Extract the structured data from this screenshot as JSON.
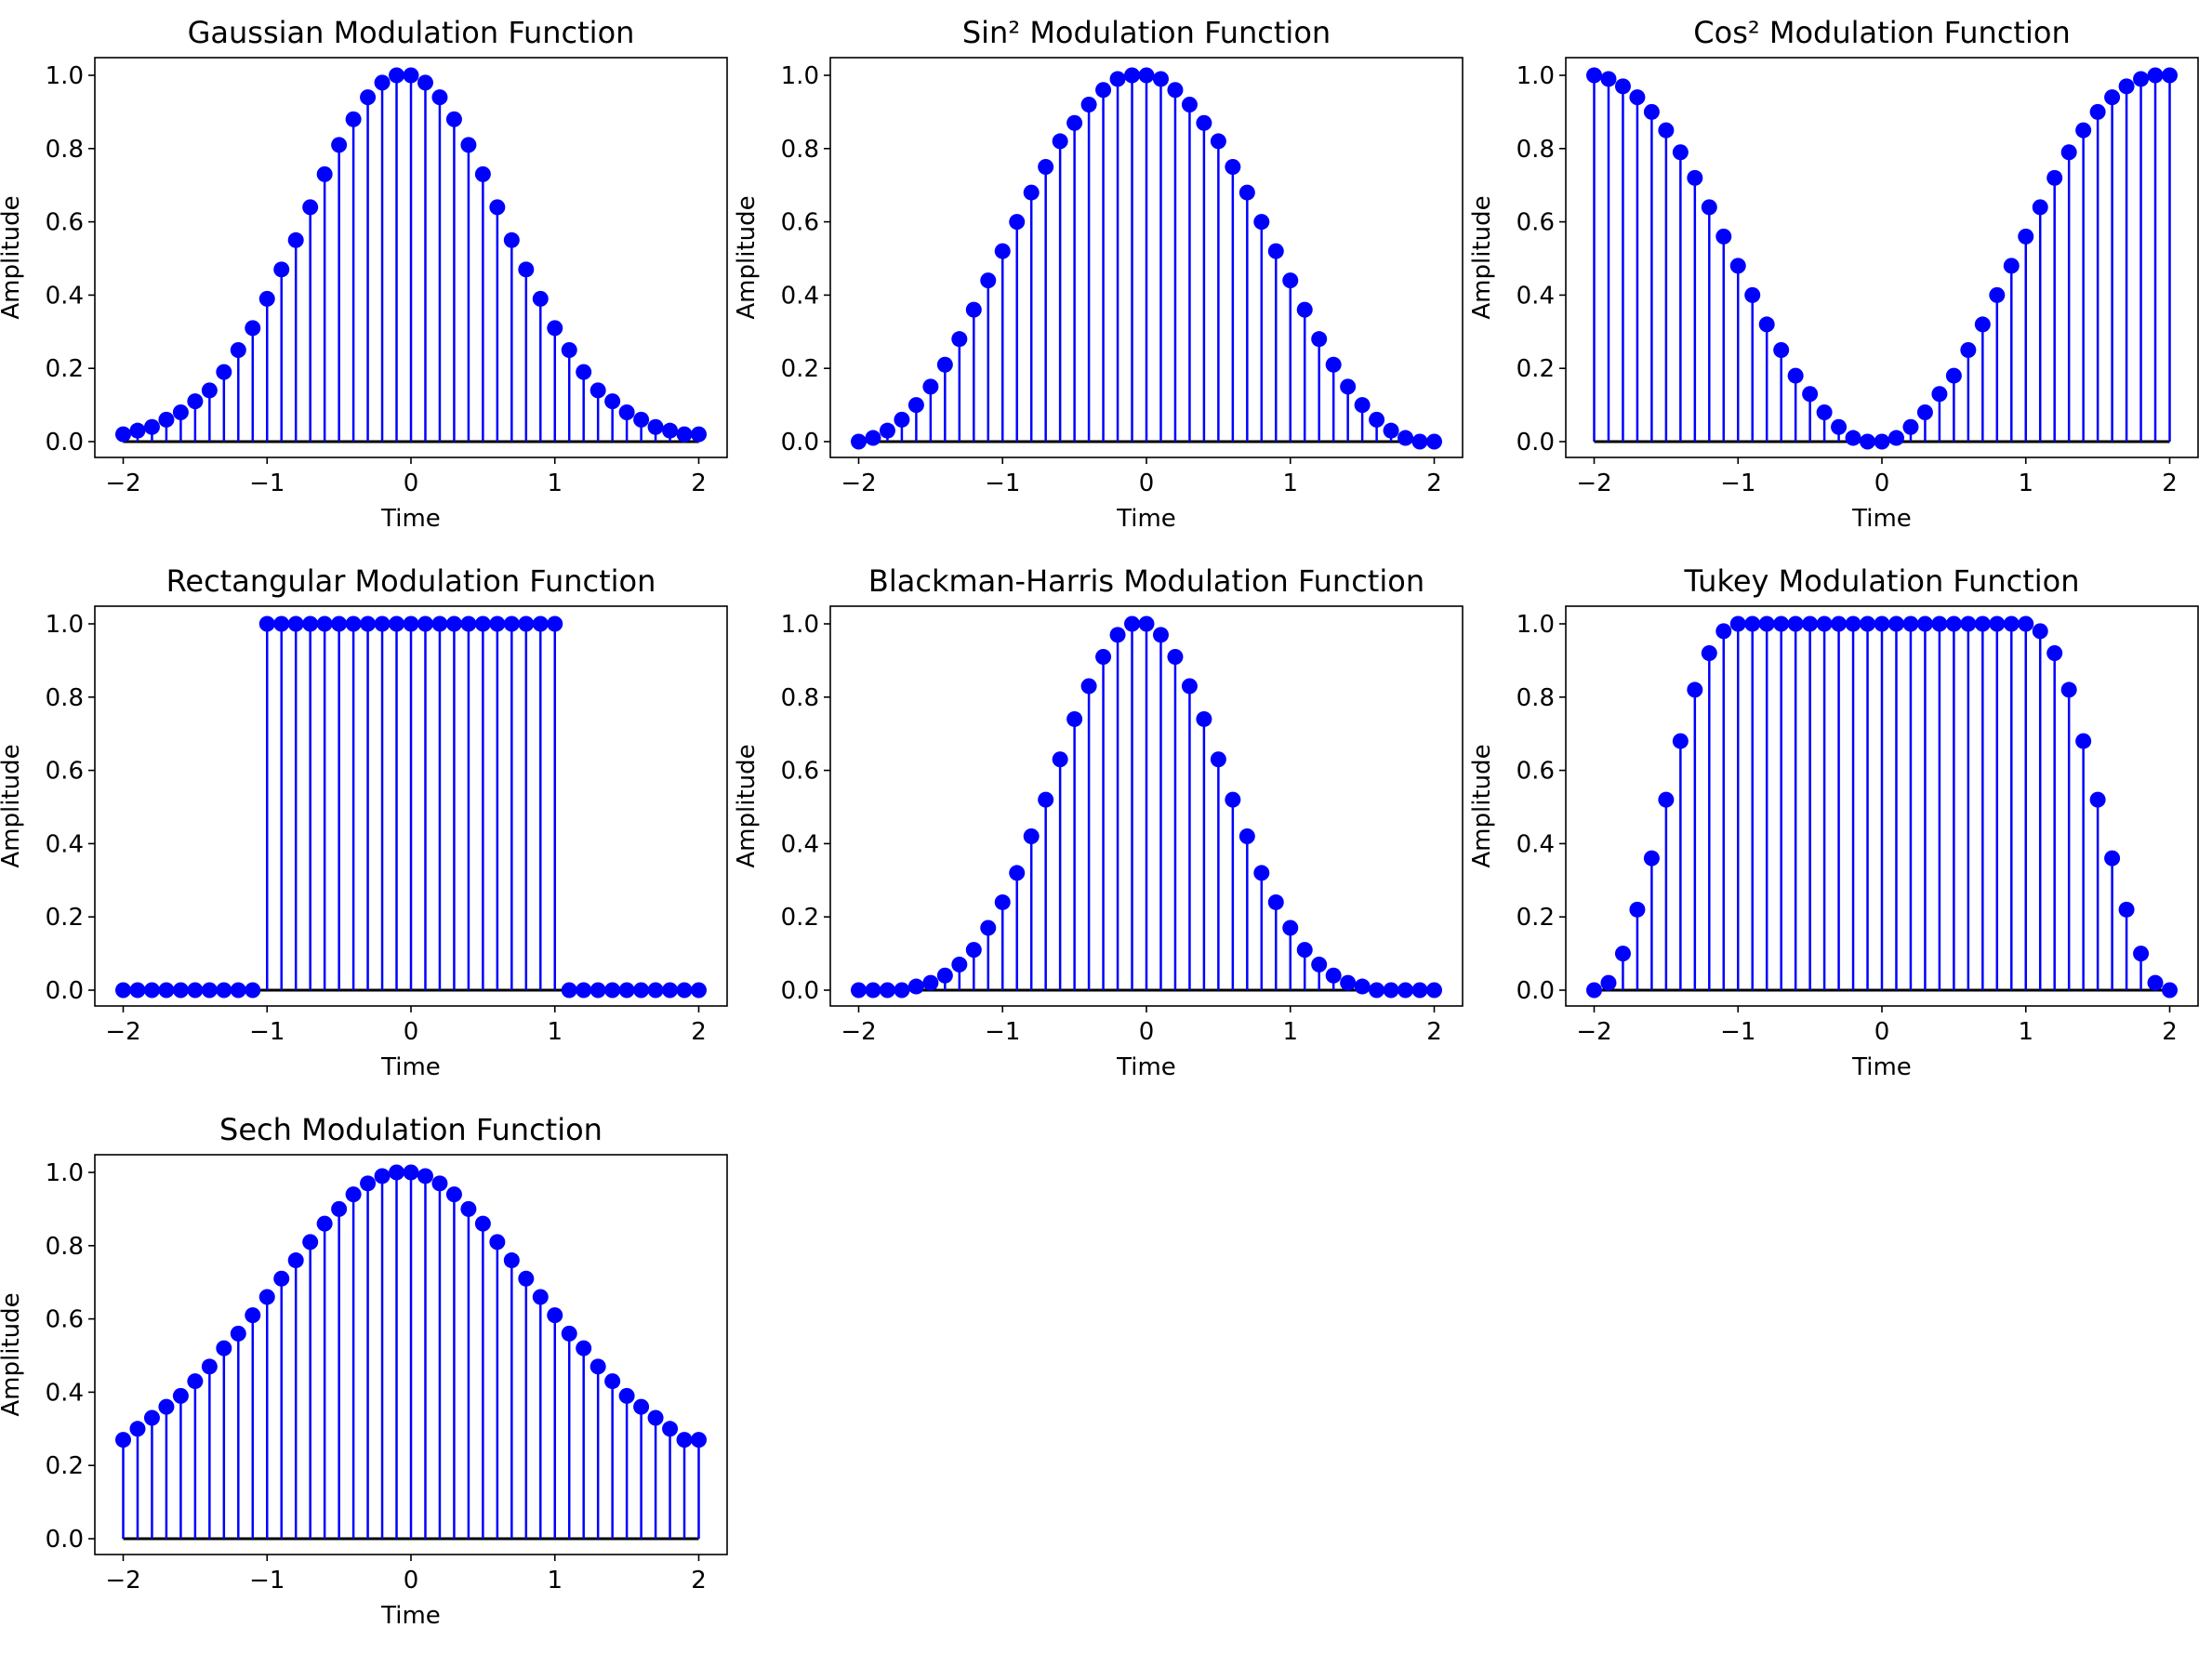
{
  "figure": {
    "layout": "3x3 grid",
    "panels_shown": 7
  },
  "colors": {
    "stem": "#0000ff",
    "marker": "#0000ff",
    "baseline": "#000000",
    "axes": "#000000",
    "background": "#ffffff"
  },
  "chart_data": [
    {
      "type": "stem",
      "title": "Gaussian Modulation Function",
      "xlabel": "Time",
      "ylabel": "Amplitude",
      "grid": false,
      "xlim": [
        -2,
        2
      ],
      "ylim": [
        0,
        1
      ],
      "xticks": [
        "−2",
        "−1",
        "0",
        "1",
        "2"
      ],
      "yticks": [
        "0.0",
        "0.2",
        "0.4",
        "0.6",
        "0.8",
        "1.0"
      ],
      "x": [
        -2.0,
        -1.9,
        -1.8,
        -1.7,
        -1.6,
        -1.5,
        -1.4,
        -1.3,
        -1.2,
        -1.1,
        -1.0,
        -0.9,
        -0.8,
        -0.7,
        -0.6,
        -0.5,
        -0.4,
        -0.3,
        -0.2,
        -0.1,
        0.0,
        0.1,
        0.2,
        0.3,
        0.4,
        0.5,
        0.6,
        0.7,
        0.8,
        0.9,
        1.0,
        1.1,
        1.2,
        1.3,
        1.4,
        1.5,
        1.6,
        1.7,
        1.8,
        1.9,
        2.0
      ],
      "values": [
        0.02,
        0.03,
        0.04,
        0.06,
        0.08,
        0.11,
        0.14,
        0.19,
        0.25,
        0.31,
        0.39,
        0.47,
        0.55,
        0.64,
        0.73,
        0.81,
        0.88,
        0.94,
        0.98,
        1.0,
        1.0,
        0.98,
        0.94,
        0.88,
        0.81,
        0.73,
        0.64,
        0.55,
        0.47,
        0.39,
        0.31,
        0.25,
        0.19,
        0.14,
        0.11,
        0.08,
        0.06,
        0.04,
        0.03,
        0.02,
        0.02
      ]
    },
    {
      "type": "stem",
      "title": "Sin² Modulation Function",
      "xlabel": "Time",
      "ylabel": "Amplitude",
      "grid": false,
      "xlim": [
        -2,
        2
      ],
      "ylim": [
        0,
        1
      ],
      "xticks": [
        "−2",
        "−1",
        "0",
        "1",
        "2"
      ],
      "yticks": [
        "0.0",
        "0.2",
        "0.4",
        "0.6",
        "0.8",
        "1.0"
      ],
      "x": [
        -2.0,
        -1.9,
        -1.8,
        -1.7,
        -1.6,
        -1.5,
        -1.4,
        -1.3,
        -1.2,
        -1.1,
        -1.0,
        -0.9,
        -0.8,
        -0.7,
        -0.6,
        -0.5,
        -0.4,
        -0.3,
        -0.2,
        -0.1,
        0.0,
        0.1,
        0.2,
        0.3,
        0.4,
        0.5,
        0.6,
        0.7,
        0.8,
        0.9,
        1.0,
        1.1,
        1.2,
        1.3,
        1.4,
        1.5,
        1.6,
        1.7,
        1.8,
        1.9,
        2.0
      ],
      "values": [
        0.0,
        0.01,
        0.03,
        0.06,
        0.1,
        0.15,
        0.21,
        0.28,
        0.36,
        0.44,
        0.52,
        0.6,
        0.68,
        0.75,
        0.82,
        0.87,
        0.92,
        0.96,
        0.99,
        1.0,
        1.0,
        0.99,
        0.96,
        0.92,
        0.87,
        0.82,
        0.75,
        0.68,
        0.6,
        0.52,
        0.44,
        0.36,
        0.28,
        0.21,
        0.15,
        0.1,
        0.06,
        0.03,
        0.01,
        0.0,
        0.0
      ]
    },
    {
      "type": "stem",
      "title": "Cos² Modulation Function",
      "xlabel": "Time",
      "ylabel": "Amplitude",
      "grid": false,
      "xlim": [
        -2,
        2
      ],
      "ylim": [
        0,
        1
      ],
      "xticks": [
        "−2",
        "−1",
        "0",
        "1",
        "2"
      ],
      "yticks": [
        "0.0",
        "0.2",
        "0.4",
        "0.6",
        "0.8",
        "1.0"
      ],
      "x": [
        -2.0,
        -1.9,
        -1.8,
        -1.7,
        -1.6,
        -1.5,
        -1.4,
        -1.3,
        -1.2,
        -1.1,
        -1.0,
        -0.9,
        -0.8,
        -0.7,
        -0.6,
        -0.5,
        -0.4,
        -0.3,
        -0.2,
        -0.1,
        0.0,
        0.1,
        0.2,
        0.3,
        0.4,
        0.5,
        0.6,
        0.7,
        0.8,
        0.9,
        1.0,
        1.1,
        1.2,
        1.3,
        1.4,
        1.5,
        1.6,
        1.7,
        1.8,
        1.9,
        2.0
      ],
      "values": [
        1.0,
        0.99,
        0.97,
        0.94,
        0.9,
        0.85,
        0.79,
        0.72,
        0.64,
        0.56,
        0.48,
        0.4,
        0.32,
        0.25,
        0.18,
        0.13,
        0.08,
        0.04,
        0.01,
        0.0,
        0.0,
        0.01,
        0.04,
        0.08,
        0.13,
        0.18,
        0.25,
        0.32,
        0.4,
        0.48,
        0.56,
        0.64,
        0.72,
        0.79,
        0.85,
        0.9,
        0.94,
        0.97,
        0.99,
        1.0,
        1.0
      ]
    },
    {
      "type": "stem",
      "title": "Rectangular Modulation Function",
      "xlabel": "Time",
      "ylabel": "Amplitude",
      "grid": false,
      "xlim": [
        -2,
        2
      ],
      "ylim": [
        0,
        1
      ],
      "xticks": [
        "−2",
        "−1",
        "0",
        "1",
        "2"
      ],
      "yticks": [
        "0.0",
        "0.2",
        "0.4",
        "0.6",
        "0.8",
        "1.0"
      ],
      "x": [
        -2.0,
        -1.9,
        -1.8,
        -1.7,
        -1.6,
        -1.5,
        -1.4,
        -1.3,
        -1.2,
        -1.1,
        -1.0,
        -0.9,
        -0.8,
        -0.7,
        -0.6,
        -0.5,
        -0.4,
        -0.3,
        -0.2,
        -0.1,
        0.0,
        0.1,
        0.2,
        0.3,
        0.4,
        0.5,
        0.6,
        0.7,
        0.8,
        0.9,
        1.0,
        1.1,
        1.2,
        1.3,
        1.4,
        1.5,
        1.6,
        1.7,
        1.8,
        1.9,
        2.0
      ],
      "values": [
        0,
        0,
        0,
        0,
        0,
        0,
        0,
        0,
        0,
        0,
        1,
        1,
        1,
        1,
        1,
        1,
        1,
        1,
        1,
        1,
        1,
        1,
        1,
        1,
        1,
        1,
        1,
        1,
        1,
        1,
        1,
        0,
        0,
        0,
        0,
        0,
        0,
        0,
        0,
        0,
        0
      ]
    },
    {
      "type": "stem",
      "title": "Blackman-Harris Modulation Function",
      "xlabel": "Time",
      "ylabel": "Amplitude",
      "grid": false,
      "xlim": [
        -2,
        2
      ],
      "ylim": [
        0,
        1
      ],
      "xticks": [
        "−2",
        "−1",
        "0",
        "1",
        "2"
      ],
      "yticks": [
        "0.0",
        "0.2",
        "0.4",
        "0.6",
        "0.8",
        "1.0"
      ],
      "x": [
        -2.0,
        -1.9,
        -1.8,
        -1.7,
        -1.6,
        -1.5,
        -1.4,
        -1.3,
        -1.2,
        -1.1,
        -1.0,
        -0.9,
        -0.8,
        -0.7,
        -0.6,
        -0.5,
        -0.4,
        -0.3,
        -0.2,
        -0.1,
        0.0,
        0.1,
        0.2,
        0.3,
        0.4,
        0.5,
        0.6,
        0.7,
        0.8,
        0.9,
        1.0,
        1.1,
        1.2,
        1.3,
        1.4,
        1.5,
        1.6,
        1.7,
        1.8,
        1.9,
        2.0
      ],
      "values": [
        0.0,
        0.0,
        0.0,
        0.0,
        0.01,
        0.02,
        0.04,
        0.07,
        0.11,
        0.17,
        0.24,
        0.32,
        0.42,
        0.52,
        0.63,
        0.74,
        0.83,
        0.91,
        0.97,
        1.0,
        1.0,
        0.97,
        0.91,
        0.83,
        0.74,
        0.63,
        0.52,
        0.42,
        0.32,
        0.24,
        0.17,
        0.11,
        0.07,
        0.04,
        0.02,
        0.01,
        0.0,
        0.0,
        0.0,
        0.0,
        0.0
      ]
    },
    {
      "type": "stem",
      "title": "Tukey Modulation Function",
      "xlabel": "Time",
      "ylabel": "Amplitude",
      "grid": false,
      "xlim": [
        -2,
        2
      ],
      "ylim": [
        0,
        1
      ],
      "xticks": [
        "−2",
        "−1",
        "0",
        "1",
        "2"
      ],
      "yticks": [
        "0.0",
        "0.2",
        "0.4",
        "0.6",
        "0.8",
        "1.0"
      ],
      "x": [
        -2.0,
        -1.9,
        -1.8,
        -1.7,
        -1.6,
        -1.5,
        -1.4,
        -1.3,
        -1.2,
        -1.1,
        -1.0,
        -0.9,
        -0.8,
        -0.7,
        -0.6,
        -0.5,
        -0.4,
        -0.3,
        -0.2,
        -0.1,
        0.0,
        0.1,
        0.2,
        0.3,
        0.4,
        0.5,
        0.6,
        0.7,
        0.8,
        0.9,
        1.0,
        1.1,
        1.2,
        1.3,
        1.4,
        1.5,
        1.6,
        1.7,
        1.8,
        1.9,
        2.0
      ],
      "values": [
        0.0,
        0.02,
        0.1,
        0.22,
        0.36,
        0.52,
        0.68,
        0.82,
        0.92,
        0.98,
        1.0,
        1.0,
        1.0,
        1.0,
        1.0,
        1.0,
        1.0,
        1.0,
        1.0,
        1.0,
        1.0,
        1.0,
        1.0,
        1.0,
        1.0,
        1.0,
        1.0,
        1.0,
        1.0,
        1.0,
        1.0,
        0.98,
        0.92,
        0.82,
        0.68,
        0.52,
        0.36,
        0.22,
        0.1,
        0.02,
        0.0
      ]
    },
    {
      "type": "stem",
      "title": "Sech Modulation Function",
      "xlabel": "Time",
      "ylabel": "Amplitude",
      "grid": false,
      "xlim": [
        -2,
        2
      ],
      "ylim": [
        0,
        1
      ],
      "xticks": [
        "−2",
        "−1",
        "0",
        "1",
        "2"
      ],
      "yticks": [
        "0.0",
        "0.2",
        "0.4",
        "0.6",
        "0.8",
        "1.0"
      ],
      "x": [
        -2.0,
        -1.9,
        -1.8,
        -1.7,
        -1.6,
        -1.5,
        -1.4,
        -1.3,
        -1.2,
        -1.1,
        -1.0,
        -0.9,
        -0.8,
        -0.7,
        -0.6,
        -0.5,
        -0.4,
        -0.3,
        -0.2,
        -0.1,
        0.0,
        0.1,
        0.2,
        0.3,
        0.4,
        0.5,
        0.6,
        0.7,
        0.8,
        0.9,
        1.0,
        1.1,
        1.2,
        1.3,
        1.4,
        1.5,
        1.6,
        1.7,
        1.8,
        1.9,
        2.0
      ],
      "values": [
        0.27,
        0.3,
        0.33,
        0.36,
        0.39,
        0.43,
        0.47,
        0.52,
        0.56,
        0.61,
        0.66,
        0.71,
        0.76,
        0.81,
        0.86,
        0.9,
        0.94,
        0.97,
        0.99,
        1.0,
        1.0,
        0.99,
        0.97,
        0.94,
        0.9,
        0.86,
        0.81,
        0.76,
        0.71,
        0.66,
        0.61,
        0.56,
        0.52,
        0.47,
        0.43,
        0.39,
        0.36,
        0.33,
        0.3,
        0.27,
        0.27
      ]
    }
  ]
}
